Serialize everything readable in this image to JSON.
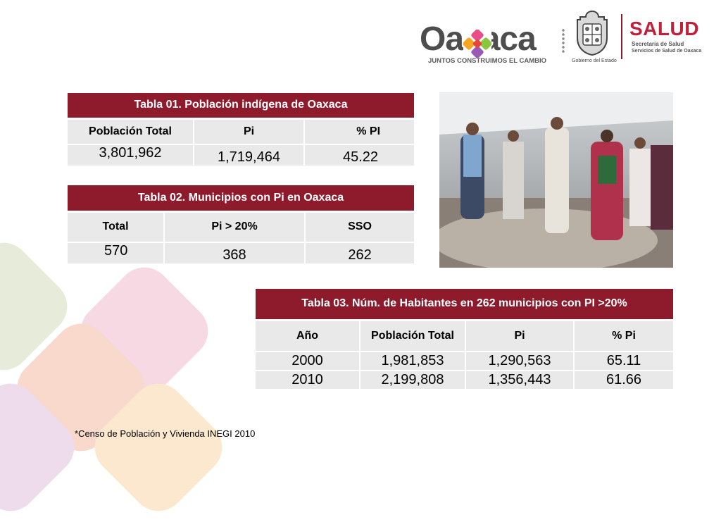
{
  "header": {
    "oaxaca_logo_text": "Oaxaca",
    "oaxaca_tagline": "JUNTOS CONSTRUIMOS EL CAMBIO",
    "gobierno_label": "Gobierno del Estado",
    "salud_title": "SALUD",
    "salud_sub1": "Secretaría de Salud",
    "salud_sub2": "Servicios de Salud de Oaxaca"
  },
  "tabla1": {
    "title": "Tabla 01. Población indígena de Oaxaca",
    "headers": [
      "Población Total",
      "Pi",
      "% PI"
    ],
    "values": [
      "3,801,962",
      "1,719,464",
      "45.22"
    ]
  },
  "tabla2": {
    "title": "Tabla 02. Municipios con Pi en Oaxaca",
    "headers": [
      "Total",
      "Pi > 20%",
      "SSO"
    ],
    "values": [
      "570",
      "368",
      "262"
    ]
  },
  "tabla3": {
    "title": "Tabla 03. Núm. de Habitantes en 262 municipios con PI >20%",
    "headers": [
      "Año",
      "Población Total",
      "Pi",
      "% Pi"
    ],
    "rows": [
      [
        "2000",
        "1,981,853",
        "1,290,563",
        "65.11"
      ],
      [
        "2010",
        "2,199,808",
        "1,356,443",
        "61.66"
      ]
    ]
  },
  "footnote": "*Censo de Población y Vivienda INEGI 2010",
  "colors": {
    "header_red": "#8e1b2c",
    "cell_gray": "#e9e9e9",
    "salud_red": "#c0203a"
  }
}
